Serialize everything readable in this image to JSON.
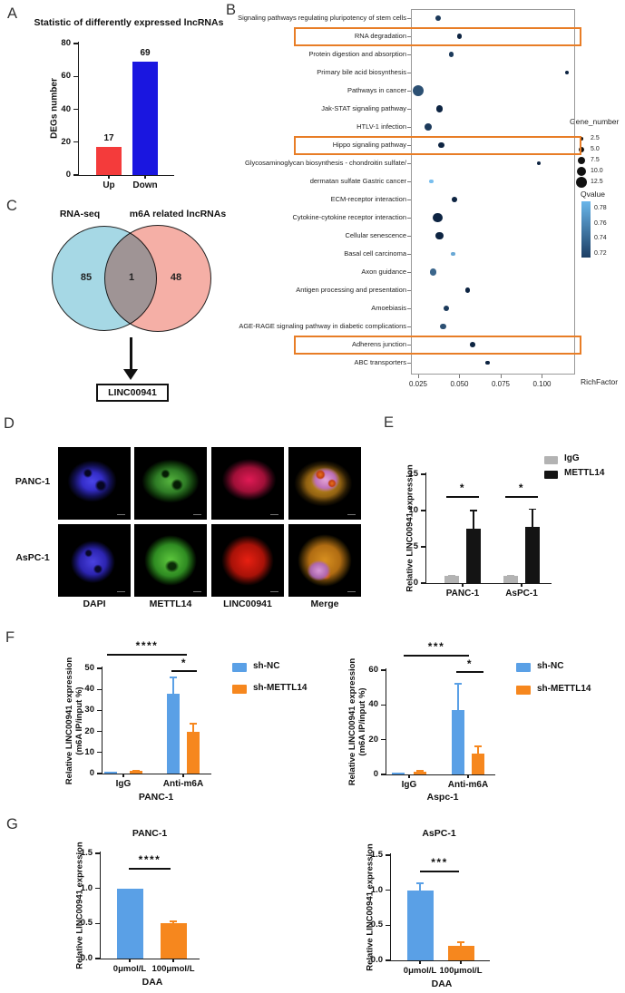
{
  "panels": {
    "A": {
      "label": "A",
      "title": "Statistic of differently expressed lncRNAs",
      "chart_data": {
        "type": "bar",
        "title": "Statistic of differently expressed lncRNAs",
        "ylabel": "DEGs number",
        "ylim": [
          0,
          80
        ],
        "yticks": [
          "0",
          "20",
          "40",
          "60",
          "80"
        ],
        "categories": [
          "Up",
          "Down"
        ],
        "values": [
          17,
          69
        ],
        "bar_colors": [
          "#F43B3B",
          "#1A16E0"
        ]
      }
    },
    "B": {
      "label": "B",
      "xlabel": "RichFactor",
      "size_legend": {
        "title": "Gene_number",
        "values": [
          "2.5",
          "5.0",
          "7.5",
          "10.0",
          "12.5"
        ],
        "sizes": [
          2.5,
          5,
          7.5,
          10,
          12.5
        ]
      },
      "color_legend": {
        "title": "Qvalue",
        "ticks": [
          "0.78",
          "0.76",
          "0.74",
          "0.72"
        ],
        "top_color": "#69B6EA",
        "bottom_color": "#1C3E64"
      },
      "chart_data": {
        "type": "scatter",
        "xlabel": "RichFactor",
        "xlim": [
          0.0205,
          0.12
        ],
        "xticks": [
          0.025,
          0.05,
          0.075,
          0.1
        ],
        "highlighted_pathways": [
          "RNA degradation",
          "Hippo signaling pathway",
          "Adherens junction"
        ],
        "points": [
          {
            "pathway": "Signaling pathways regulating pluripotency of stem cells",
            "rich_factor": 0.037,
            "gene_number": 5,
            "qvalue": 0.72
          },
          {
            "pathway": "RNA degradation",
            "rich_factor": 0.05,
            "gene_number": 4,
            "qvalue": 0.71,
            "highlight": true
          },
          {
            "pathway": "Protein digestion and absorption",
            "rich_factor": 0.045,
            "gene_number": 4,
            "qvalue": 0.72
          },
          {
            "pathway": "Primary bile acid biosynthesis",
            "rich_factor": 0.115,
            "gene_number": 2,
            "qvalue": 0.71
          },
          {
            "pathway": "Pathways in cancer",
            "rich_factor": 0.025,
            "gene_number": 12.5,
            "qvalue": 0.73
          },
          {
            "pathway": "Jak-STAT signaling pathway",
            "rich_factor": 0.038,
            "gene_number": 6,
            "qvalue": 0.71
          },
          {
            "pathway": "HTLV-1 infection",
            "rich_factor": 0.031,
            "gene_number": 7.5,
            "qvalue": 0.72
          },
          {
            "pathway": "Hippo signaling pathway",
            "rich_factor": 0.039,
            "gene_number": 5,
            "qvalue": 0.71,
            "highlight": true
          },
          {
            "pathway": "Glycosaminoglycan biosynthesis - chondroitin sulfate/",
            "rich_factor": 0.098,
            "gene_number": 2,
            "qvalue": 0.71
          },
          {
            "pathway": "dermatan sulfate Gastric cancer",
            "rich_factor": 0.033,
            "gene_number": 3,
            "qvalue": 0.78
          },
          {
            "pathway": "ECM-receptor interaction",
            "rich_factor": 0.047,
            "gene_number": 4,
            "qvalue": 0.71
          },
          {
            "pathway": "Cytokine-cytokine receptor interaction",
            "rich_factor": 0.037,
            "gene_number": 10,
            "qvalue": 0.71
          },
          {
            "pathway": "Cellular senescence",
            "rich_factor": 0.038,
            "gene_number": 7.5,
            "qvalue": 0.71
          },
          {
            "pathway": "Basal cell carcinoma",
            "rich_factor": 0.046,
            "gene_number": 3,
            "qvalue": 0.77
          },
          {
            "pathway": "Axon guidance",
            "rich_factor": 0.034,
            "gene_number": 6,
            "qvalue": 0.74
          },
          {
            "pathway": "Antigen processing and presentation",
            "rich_factor": 0.055,
            "gene_number": 4,
            "qvalue": 0.71
          },
          {
            "pathway": "Amoebiasis",
            "rich_factor": 0.042,
            "gene_number": 5,
            "qvalue": 0.72
          },
          {
            "pathway": "AGE-RAGE signaling pathway in diabetic complications",
            "rich_factor": 0.04,
            "gene_number": 5,
            "qvalue": 0.73
          },
          {
            "pathway": "Adherens junction",
            "rich_factor": 0.058,
            "gene_number": 4,
            "qvalue": 0.71,
            "highlight": true
          },
          {
            "pathway": "ABC transporters",
            "rich_factor": 0.067,
            "gene_number": 3,
            "qvalue": 0.71
          }
        ]
      }
    },
    "C": {
      "label": "C",
      "venn": {
        "left_label": "RNA-seq",
        "right_label": "m6A related lncRNAs",
        "left_count": "85",
        "overlap_count": "1",
        "right_count": "48",
        "result": "LINC00941",
        "left_color": "#A6D7E4",
        "right_color": "#F4A79E"
      }
    },
    "D": {
      "label": "D",
      "rows": [
        "PANC-1",
        "AsPC-1"
      ],
      "columns": [
        "DAPI",
        "METTL14",
        "LINC00941",
        "Merge"
      ]
    },
    "E": {
      "label": "E",
      "chart_data": {
        "type": "bar",
        "ylabel": "Relative LINC00941 expression",
        "ylim": [
          0,
          15
        ],
        "yticks": [
          "0",
          "5",
          "10",
          "15"
        ],
        "categories": [
          "PANC-1",
          "AsPC-1"
        ],
        "series": [
          {
            "name": "IgG",
            "color": "#B3B3B3",
            "values": [
              1.0,
              1.0
            ],
            "errors": [
              0.15,
              0.15
            ]
          },
          {
            "name": "METTL14",
            "color": "#141414",
            "values": [
              7.5,
              7.7
            ],
            "errors": [
              2.6,
              2.6
            ]
          }
        ],
        "significance": [
          "*",
          "*"
        ]
      }
    },
    "F": {
      "label": "F",
      "legend": [
        "sh-NC",
        "sh-METTL14"
      ],
      "colors": {
        "sh_nc": "#5AA0E6",
        "sh_mettl14": "#F6871E"
      },
      "charts": [
        {
          "cell_line": "PANC-1",
          "chart_data": {
            "type": "bar",
            "ylabel_line1": "Relative LINC00941 expression",
            "ylabel_line2": "(m6A IP/input %)",
            "ylim": [
              0,
              50
            ],
            "yticks": [
              "0",
              "10",
              "20",
              "30",
              "40",
              "50"
            ],
            "categories": [
              "IgG",
              "Anti-m6A"
            ],
            "series": [
              {
                "name": "sh-NC",
                "values": [
                  0.8,
                  38
                ],
                "errors": [
                  0.2,
                  8
                ]
              },
              {
                "name": "sh-METTL14",
                "values": [
                  1.3,
                  20
                ],
                "errors": [
                  0.4,
                  4
                ]
              }
            ],
            "sig_outer": "****",
            "sig_inner": "*"
          }
        },
        {
          "cell_line": "Aspc-1",
          "chart_data": {
            "type": "bar",
            "ylabel_line1": "Relative LINC00941 expression",
            "ylabel_line2": "(m6A IP/input %)",
            "ylim": [
              0,
              60
            ],
            "yticks": [
              "0",
              "20",
              "40",
              "60"
            ],
            "categories": [
              "IgG",
              "Anti-m6A"
            ],
            "series": [
              {
                "name": "sh-NC",
                "values": [
                  1.0,
                  37
                ],
                "errors": [
                  0.3,
                  15.5
                ]
              },
              {
                "name": "sh-METTL14",
                "values": [
                  1.8,
                  12
                ],
                "errors": [
                  0.6,
                  4.5
                ]
              }
            ],
            "sig_outer": "***",
            "sig_inner": "*"
          }
        }
      ]
    },
    "G": {
      "label": "G",
      "charts": [
        {
          "title": "PANC-1",
          "chart_data": {
            "type": "bar",
            "ylabel": "Relative LINC00941 expression",
            "xlabel": "DAA",
            "ylim": [
              0,
              1.5
            ],
            "yticks": [
              "0.0",
              "0.5",
              "1.0",
              "1.5"
            ],
            "categories": [
              "0μmol/L",
              "100μmol/L"
            ],
            "values": [
              1.0,
              0.5
            ],
            "errors": [
              0,
              0.04
            ],
            "bar_colors": [
              "#5AA0E6",
              "#F6871E"
            ],
            "significance": "****"
          }
        },
        {
          "title": "AsPC-1",
          "chart_data": {
            "type": "bar",
            "ylabel": "Relative LINC00941 expression",
            "xlabel": "DAA",
            "ylim": [
              0,
              1.5
            ],
            "yticks": [
              "0.0",
              "0.5",
              "1.0",
              "1.5"
            ],
            "categories": [
              "0μmol/L",
              "100μmol/L"
            ],
            "values": [
              1.0,
              0.21
            ],
            "errors": [
              0.11,
              0.06
            ],
            "bar_colors": [
              "#5AA0E6",
              "#F6871E"
            ],
            "significance": "***"
          }
        }
      ]
    }
  }
}
